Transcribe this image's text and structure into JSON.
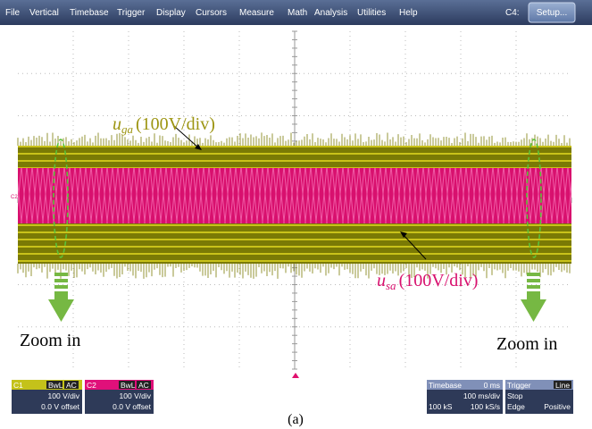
{
  "menu": {
    "items": [
      "File",
      "Vertical",
      "Timebase",
      "Trigger",
      "Display",
      "Cursors",
      "Measure",
      "Math",
      "Analysis",
      "Utilities",
      "Help"
    ],
    "channel": "C4:",
    "button": "Setup..."
  },
  "screen": {
    "channel_marker": "C2"
  },
  "annotations": {
    "uga": {
      "symbol": "u",
      "subscript": "ga",
      "scale": "(100V/div)"
    },
    "usa": {
      "symbol": "u",
      "subscript": "sa",
      "scale": "(100V/div)"
    },
    "zoom_left": "Zoom in",
    "zoom_right": "Zoom in"
  },
  "panels": {
    "c1": {
      "label": "C1",
      "bw": "BwL",
      "coupling": "AC",
      "scale": "100 V/div",
      "offset": "0.0 V offset"
    },
    "c2": {
      "label": "C2",
      "bw": "BwL",
      "coupling": "AC",
      "scale": "100 V/div",
      "offset": "0.0 V offset"
    },
    "timebase": {
      "label": "Timebase",
      "delay": "0 ms",
      "scale": "100 ms/div",
      "samples": "100 kS",
      "rate": "100 kS/s"
    },
    "trigger": {
      "label": "Trigger",
      "source": "Line",
      "state": "Stop",
      "type": "Edge",
      "slope": "Positive"
    }
  },
  "caption": "(a)"
}
